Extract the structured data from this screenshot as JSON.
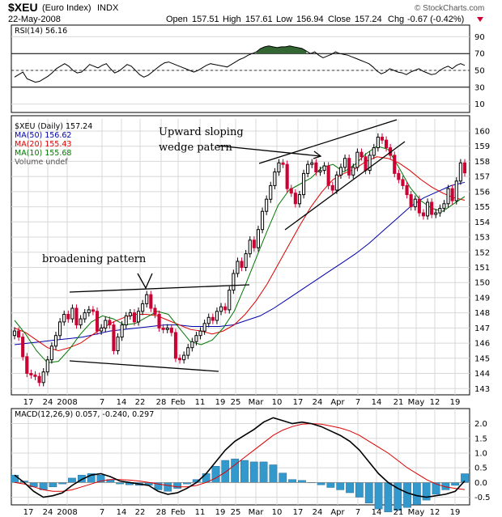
{
  "header": {
    "symbol": "$XEU",
    "name": "(Euro Index)",
    "exchange": "INDX",
    "date": "22-May-2008",
    "open_label": "Open",
    "open": "157.51",
    "high_label": "High",
    "high": "157.61",
    "low_label": "Low",
    "low": "156.94",
    "close_label": "Close",
    "close": "157.24",
    "chg_label": "Chg",
    "chg": "-0.67 (-0.42%)",
    "watermark": "© StockCharts.com"
  },
  "colors": {
    "up": "#000000",
    "down": "#cc0033",
    "ma50": "#0000aa",
    "ma20": "#dd0000",
    "ma10": "#007700",
    "rsi_fill": "#336633",
    "macd": "#000000",
    "signal": "#dd0000",
    "hist": "#3399cc"
  },
  "chart_data": [
    {
      "type": "line",
      "panel": "rsi",
      "legend": "RSI(14) 56.16",
      "ylim": [
        0,
        100
      ],
      "y_ticks": [
        10,
        30,
        50,
        70,
        90
      ],
      "levels": [
        30,
        50,
        70
      ],
      "values": [
        42,
        45,
        48,
        40,
        38,
        36,
        37,
        40,
        43,
        47,
        52,
        55,
        58,
        55,
        50,
        47,
        48,
        52,
        57,
        55,
        53,
        56,
        58,
        52,
        47,
        49,
        53,
        57,
        55,
        50,
        45,
        42,
        44,
        48,
        52,
        56,
        59,
        60,
        58,
        56,
        54,
        52,
        50,
        48,
        50,
        53,
        56,
        58,
        57,
        56,
        55,
        54,
        57,
        60,
        63,
        65,
        68,
        70,
        72,
        76,
        78,
        79,
        78,
        77,
        78,
        78,
        79,
        78,
        77,
        76,
        73,
        70,
        72,
        68,
        65,
        67,
        69,
        72,
        70,
        69,
        68,
        66,
        64,
        62,
        60,
        58,
        54,
        49,
        46,
        48,
        52,
        50,
        48,
        47,
        45,
        48,
        50,
        52,
        49,
        47,
        45,
        46,
        50,
        53,
        55,
        52,
        56,
        58,
        56
      ]
    },
    {
      "type": "candlestick",
      "panel": "price",
      "legend": [
        "$XEU (Daily) 157.24",
        "MA(50) 156.62",
        "MA(20) 155.43",
        "MA(10) 155.68",
        "Volume undef"
      ],
      "ylim": [
        142.8,
        160.8
      ],
      "y_ticks": [
        143,
        144,
        145,
        146,
        147,
        148,
        149,
        150,
        151,
        152,
        153,
        154,
        155,
        156,
        157,
        158,
        159,
        160
      ],
      "x_ticks": [
        "17",
        "24",
        "2008",
        "7",
        "14",
        "22",
        "28",
        "Feb",
        "11",
        "19",
        "25",
        "Mar",
        "10",
        "17",
        "24",
        "Apr",
        "7",
        "14",
        "21",
        "May",
        "12",
        "19"
      ],
      "closes": [
        146.8,
        146.4,
        145.1,
        144.0,
        143.9,
        143.8,
        143.4,
        144.1,
        144.9,
        145.8,
        146.5,
        147.4,
        147.9,
        147.6,
        148.3,
        147.2,
        147.6,
        148.0,
        148.2,
        148.1,
        146.8,
        147.0,
        147.5,
        147.2,
        145.5,
        146.4,
        147.2,
        147.8,
        148.0,
        147.4,
        148.1,
        148.6,
        149.2,
        148.3,
        147.9,
        147.0,
        146.9,
        147.0,
        146.7,
        145.0,
        144.9,
        145.2,
        145.7,
        146.1,
        146.5,
        146.8,
        147.3,
        147.7,
        147.5,
        148.1,
        148.4,
        148.2,
        149.5,
        150.6,
        151.4,
        151.0,
        151.9,
        152.8,
        152.3,
        153.5,
        154.7,
        155.5,
        156.4,
        157.3,
        157.9,
        157.8,
        156.2,
        155.9,
        155.2,
        155.8,
        157.2,
        157.8,
        157.9,
        157.3,
        157.4,
        157.7,
        156.4,
        156.1,
        157.1,
        157.6,
        158.2,
        157.1,
        157.6,
        158.6,
        158.3,
        157.4,
        158.4,
        158.9,
        159.6,
        159.4,
        158.9,
        158.4,
        157.2,
        156.8,
        156.4,
        155.8,
        155.0,
        155.5,
        154.6,
        154.4,
        155.3,
        154.5,
        154.6,
        154.9,
        155.2,
        156.2,
        155.4,
        156.7,
        157.9,
        157.24
      ],
      "ma50": [
        145.9,
        146.0,
        146.1,
        146.2,
        146.3,
        146.4,
        146.6,
        146.8,
        146.9,
        147.0,
        147.1,
        147.2,
        147.2,
        147.1,
        147.1,
        147.1,
        147.2,
        147.5,
        147.8,
        148.3,
        148.9,
        149.5,
        150.1,
        150.7,
        151.3,
        151.9,
        152.6,
        153.4,
        154.2,
        155.0,
        155.6,
        156.0,
        156.4,
        156.62
      ],
      "ma20": [
        147.0,
        146.7,
        146.2,
        145.7,
        145.5,
        145.7,
        146.0,
        146.5,
        147.0,
        147.4,
        147.7,
        147.9,
        147.9,
        147.8,
        147.5,
        147.2,
        146.9,
        146.8,
        146.6,
        146.8,
        147.2,
        147.9,
        148.8,
        149.9,
        151.2,
        152.5,
        153.8,
        155.0,
        156.0,
        156.8,
        157.2,
        157.5,
        158.0,
        158.3,
        158.2,
        157.9,
        157.4,
        156.8,
        156.3,
        155.9,
        155.6,
        155.43
      ],
      "ma10": [
        147.5,
        146.6,
        145.5,
        144.7,
        144.8,
        145.6,
        146.6,
        147.4,
        147.8,
        147.6,
        147.2,
        147.3,
        147.7,
        148.1,
        147.9,
        147.0,
        146.1,
        145.9,
        146.2,
        147.0,
        148.1,
        149.8,
        151.6,
        153.4,
        155.1,
        156.1,
        156.5,
        156.9,
        157.6,
        157.8,
        157.3,
        157.8,
        158.5,
        159.0,
        158.8,
        157.6,
        156.3,
        155.4,
        154.9,
        154.7,
        155.2,
        155.68
      ]
    },
    {
      "type": "line",
      "panel": "macd",
      "legend": "MACD(12,26,9) 0.057, -0.240, 0.297",
      "ylim": [
        -0.65,
        2.4
      ],
      "y_ticks": [
        -0.5,
        0.0,
        0.5,
        1.0,
        1.5,
        2.0
      ],
      "x_ticks": [
        "17",
        "24",
        "2008",
        "7",
        "14",
        "22",
        "28",
        "Feb",
        "11",
        "19",
        "25",
        "Mar",
        "10",
        "17",
        "24",
        "Apr",
        "7",
        "14",
        "21",
        "May",
        "12",
        "19"
      ],
      "macd": [
        0.25,
        0.0,
        -0.3,
        -0.5,
        -0.45,
        -0.35,
        -0.1,
        0.1,
        0.25,
        0.3,
        0.2,
        0.05,
        0.0,
        -0.05,
        -0.1,
        -0.3,
        -0.4,
        -0.35,
        -0.2,
        0.0,
        0.3,
        0.7,
        1.1,
        1.4,
        1.6,
        1.8,
        2.05,
        2.2,
        2.1,
        2.0,
        2.05,
        2.0,
        1.9,
        1.75,
        1.6,
        1.4,
        1.1,
        0.7,
        0.3,
        0.0,
        -0.2,
        -0.35,
        -0.45,
        -0.5,
        -0.45,
        -0.4,
        -0.3,
        0.057
      ],
      "signal": [
        0.0,
        -0.05,
        -0.15,
        -0.25,
        -0.3,
        -0.3,
        -0.25,
        -0.15,
        -0.05,
        0.05,
        0.1,
        0.1,
        0.08,
        0.05,
        0.0,
        -0.05,
        -0.1,
        -0.15,
        -0.15,
        -0.1,
        0.0,
        0.15,
        0.35,
        0.6,
        0.85,
        1.1,
        1.35,
        1.6,
        1.78,
        1.9,
        1.98,
        2.0,
        1.98,
        1.92,
        1.85,
        1.75,
        1.6,
        1.4,
        1.2,
        1.0,
        0.75,
        0.5,
        0.3,
        0.1,
        -0.05,
        -0.15,
        -0.2,
        -0.24
      ]
    }
  ],
  "annotations": {
    "wedge_line1": "Upward sloping",
    "wedge_line2": "wedge patern",
    "broadening": "broadening pattern"
  }
}
